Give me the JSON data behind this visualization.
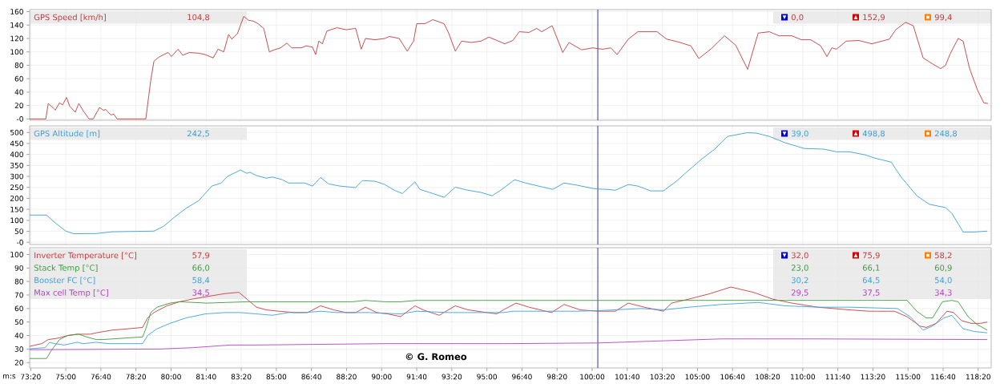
{
  "chart_data": [
    {
      "type": "line",
      "series": [
        {
          "name": "GPS Speed [km/h]",
          "color": "#c23b3b",
          "x": [
            4397,
            4443,
            4450,
            4463,
            4470,
            4482,
            4491,
            4502,
            4511,
            4527,
            4537,
            4550,
            4566,
            4578,
            4596,
            4607,
            4614,
            4628,
            4637,
            4646,
            4728,
            4742,
            4751,
            4765,
            4779,
            4792,
            4801,
            4820,
            4833,
            4852,
            4879,
            4897,
            4920,
            4934,
            4950,
            4964,
            4973,
            4989,
            5007,
            5021,
            5034,
            5048,
            5064,
            5080,
            5094,
            5112,
            5130,
            5144,
            5171,
            5185,
            5203,
            5212,
            5221,
            5231,
            5244,
            5272,
            5299,
            5326,
            5342,
            5354,
            5381,
            5409,
            5422,
            5450,
            5473,
            5491,
            5500,
            5523,
            5546,
            5578,
            5591,
            5610,
            5628,
            5655,
            5683,
            5706,
            5751,
            5774,
            5792,
            5820,
            5842,
            5856,
            5886,
            5916,
            5934,
            5970,
            6002,
            6016,
            6030,
            6053,
            6071,
            6103,
            6130,
            6185,
            6212,
            6244,
            6281,
            6304,
            6340,
            6377,
            6409,
            6443,
            6473,
            6505,
            6532,
            6569,
            6596,
            6623,
            6651,
            6669,
            6683,
            6696,
            6724,
            6760,
            6797,
            6847,
            6865,
            6893,
            6915,
            6943,
            6970,
            6993,
            7007,
            7021,
            7043,
            7057,
            7075,
            7098,
            7116,
            7128
          ],
          "values": [
            0,
            0,
            23,
            17,
            13,
            24,
            21,
            32,
            19,
            10,
            23,
            12,
            0,
            0,
            17,
            13,
            14,
            6,
            7,
            0,
            0,
            57,
            86,
            92,
            96,
            99,
            93,
            104,
            95,
            99,
            98,
            96,
            91,
            104,
            100,
            126,
            119,
            127,
            152.9,
            147,
            146,
            142,
            135,
            100,
            103,
            106,
            113,
            106,
            106,
            109,
            107,
            96,
            116,
            112,
            131,
            136,
            133,
            135,
            104,
            120,
            118,
            120,
            123,
            120,
            101,
            116,
            142,
            142,
            148,
            142,
            128,
            101,
            116,
            114,
            116,
            122,
            112,
            117,
            130,
            129,
            135,
            130,
            139,
            99,
            114,
            103,
            106,
            104.8,
            104,
            106,
            96,
            119,
            130,
            130,
            119,
            115,
            109,
            90,
            105,
            124,
            110,
            74,
            128,
            130,
            124,
            124,
            118,
            118,
            109,
            93,
            106,
            104,
            116,
            117,
            112,
            119,
            133,
            144,
            139,
            91,
            82,
            75,
            80,
            98,
            120,
            116,
            76,
            43,
            24,
            23
          ]
        }
      ],
      "xlim": [
        4397,
        7137
      ],
      "xticks": [
        4400,
        4500,
        4600,
        4700,
        4800,
        4900,
        5000,
        5100,
        5200,
        5300,
        5400,
        5500,
        5600,
        5700,
        5800,
        5900,
        6000,
        6100,
        6200,
        6300,
        6400,
        6500,
        6600,
        6700,
        6800,
        6900,
        7000,
        7100
      ],
      "ylim": [
        -2,
        163
      ],
      "yticks": [
        {
          "value": 0,
          "label": "-0"
        },
        20,
        40,
        60,
        80,
        100,
        120,
        140,
        160
      ],
      "grid": true,
      "legend": "top left",
      "tick_labels": "y",
      "ref_lines": [
        {
          "axis": "x",
          "value": 6016,
          "color": "#1f1f8f"
        }
      ],
      "annotations": [
        "104,8",
        "0,0",
        "152,9",
        "99,4"
      ]
    },
    {
      "type": "line",
      "series": [
        {
          "name": "GPS Altitude [m]",
          "color": "#3aa0d0",
          "x": [
            4397,
            4445,
            4468,
            4500,
            4523,
            4587,
            4632,
            4751,
            4779,
            4806,
            4842,
            4879,
            4916,
            4943,
            4961,
            4989,
            4998,
            5016,
            5025,
            5043,
            5071,
            5089,
            5117,
            5135,
            5180,
            5203,
            5226,
            5249,
            5281,
            5326,
            5345,
            5381,
            5409,
            5436,
            5459,
            5495,
            5509,
            5546,
            5578,
            5610,
            5646,
            5683,
            5715,
            5742,
            5779,
            5810,
            5847,
            5888,
            5920,
            5957,
            6002,
            6016,
            6043,
            6066,
            6103,
            6130,
            6167,
            6203,
            6240,
            6276,
            6313,
            6349,
            6386,
            6413,
            6441,
            6468,
            6505,
            6550,
            6605,
            6660,
            6696,
            6733,
            6778,
            6806,
            6852,
            6879,
            6925,
            6961,
            7007,
            7025,
            7057,
            7089,
            7126
          ],
          "values": [
            124,
            124,
            91,
            51,
            39,
            40,
            48,
            51,
            73,
            110,
            154,
            190,
            256,
            270,
            300,
            322,
            329,
            314,
            319,
            304,
            292,
            297,
            285,
            270,
            270,
            256,
            295,
            266,
            256,
            249,
            281,
            278,
            263,
            237,
            222,
            275,
            241,
            222,
            205,
            251,
            237,
            227,
            212,
            240,
            285,
            270,
            256,
            241,
            270,
            260,
            245,
            242.5,
            241,
            237,
            263,
            256,
            234,
            234,
            278,
            329,
            380,
            424,
            482,
            490,
            498.8,
            497,
            482,
            453,
            427,
            424,
            412,
            412,
            398,
            383,
            365,
            300,
            212,
            173,
            158,
            132,
            47,
            47,
            51
          ]
        }
      ],
      "xlim": [
        4397,
        7137
      ],
      "xticks": [
        4400,
        4500,
        4600,
        4700,
        4800,
        4900,
        5000,
        5100,
        5200,
        5300,
        5400,
        5500,
        5600,
        5700,
        5800,
        5900,
        6000,
        6100,
        6200,
        6300,
        6400,
        6500,
        6600,
        6700,
        6800,
        6900,
        7000,
        7100
      ],
      "ylim": [
        -10,
        530
      ],
      "yticks": [
        {
          "value": 0,
          "label": "-0"
        },
        50,
        100,
        150,
        200,
        250,
        300,
        350,
        400,
        450,
        500
      ],
      "grid": true,
      "legend": "top left",
      "tick_labels": "y",
      "ref_lines": [
        {
          "axis": "x",
          "value": 6016,
          "color": "#1f1f8f"
        }
      ],
      "annotations": [
        "242,5",
        "39,0",
        "498,8",
        "248,8"
      ]
    },
    {
      "type": "line",
      "xlabel": "m:s",
      "series": [
        {
          "name": "Inverter Temperature [°C]",
          "color": "#c83c3c",
          "x": [
            4397,
            4431,
            4450,
            4477,
            4505,
            4532,
            4569,
            4587,
            4632,
            4678,
            4719,
            4733,
            4751,
            4788,
            4824,
            4861,
            4906,
            4952,
            4993,
            5007,
            5025,
            5043,
            5071,
            5107,
            5153,
            5189,
            5226,
            5263,
            5299,
            5326,
            5354,
            5386,
            5418,
            5454,
            5495,
            5518,
            5564,
            5610,
            5646,
            5701,
            5728,
            5747,
            5783,
            5820,
            5884,
            5920,
            5966,
            6016,
            6066,
            6103,
            6148,
            6203,
            6226,
            6276,
            6336,
            6395,
            6459,
            6514,
            6569,
            6642,
            6733,
            6788,
            6861,
            6897,
            6934,
            6952,
            6980,
            7011,
            7030,
            7053,
            7080,
            7107,
            7126
          ],
          "values": [
            32,
            34,
            37,
            38,
            40,
            41,
            41,
            42,
            44,
            45,
            46,
            53,
            57,
            62,
            65,
            67,
            69,
            71,
            72,
            69,
            65,
            61,
            59,
            58,
            57,
            57,
            62,
            59,
            57,
            57,
            61,
            57,
            56,
            54,
            62,
            59,
            55,
            62,
            59,
            57,
            56,
            59,
            64,
            61,
            57,
            63,
            59,
            58,
            58,
            64,
            61,
            58,
            64,
            67,
            71,
            75.9,
            72,
            67,
            64,
            61,
            59,
            58,
            58,
            54,
            47,
            46,
            49,
            58,
            57,
            51,
            49,
            49,
            50
          ]
        },
        {
          "name": "Stack Temp [°C]",
          "color": "#3c9a3c",
          "x": [
            4397,
            4445,
            4459,
            4482,
            4505,
            4537,
            4559,
            4587,
            4605,
            4719,
            4728,
            4742,
            4760,
            4797,
            4824,
            4902,
            5016,
            5317,
            5354,
            5409,
            5454,
            5500,
            6016,
            6897,
            6925,
            6952,
            6970,
            6998,
            7025,
            7043,
            7071,
            7098,
            7126
          ],
          "values": [
            23,
            23,
            29,
            37,
            40,
            41,
            39,
            37,
            37,
            39,
            45,
            57,
            61,
            64,
            65,
            64,
            65,
            65,
            66,
            65,
            65,
            66,
            66,
            66.1,
            58,
            53,
            53,
            65,
            66,
            65,
            54,
            48,
            44
          ]
        },
        {
          "name": "Booster FC [°C]",
          "color": "#3ba3d9",
          "x": [
            4397,
            4441,
            4454,
            4468,
            4495,
            4532,
            4550,
            4587,
            4623,
            4719,
            4733,
            4760,
            4797,
            4842,
            4897,
            4952,
            4998,
            5043,
            5089,
            5135,
            5180,
            5226,
            5272,
            5363,
            5454,
            5500,
            5591,
            5683,
            5747,
            5774,
            5865,
            5957,
            6016,
            6139,
            6203,
            6276,
            6368,
            6473,
            6550,
            6642,
            6733,
            6870,
            6906,
            6943,
            6970,
            7002,
            7025,
            7057,
            7089,
            7126
          ],
          "values": [
            30.2,
            31,
            35,
            34,
            33,
            35,
            34,
            35,
            34,
            34,
            40,
            45,
            49,
            53,
            56,
            57,
            57,
            56,
            55,
            57,
            57,
            58,
            57,
            57,
            56,
            58,
            57,
            57,
            57,
            58,
            58,
            58,
            58.4,
            60,
            59,
            61,
            63,
            64.5,
            62,
            61,
            61,
            60,
            54,
            44,
            47,
            53,
            55,
            45,
            43,
            42
          ]
        },
        {
          "name": "Max cell Temp [°C]",
          "color": "#b83fc6",
          "x": [
            4397,
            4769,
            4861,
            4970,
            5043,
            5409,
            5747,
            6016,
            6368,
            6642,
            7126
          ],
          "values": [
            29.5,
            30,
            31,
            33,
            33,
            34,
            34,
            34.5,
            37.5,
            37.5,
            37
          ]
        }
      ],
      "xlim": [
        4397,
        7137
      ],
      "xticks": [
        {
          "value": 4400,
          "label": "73:20"
        },
        {
          "value": 4500,
          "label": "75:00"
        },
        {
          "value": 4600,
          "label": "76:40"
        },
        {
          "value": 4700,
          "label": "78:20"
        },
        {
          "value": 4800,
          "label": "80:00"
        },
        {
          "value": 4900,
          "label": "81:40"
        },
        {
          "value": 5000,
          "label": "83:20"
        },
        {
          "value": 5100,
          "label": "85:00"
        },
        {
          "value": 5200,
          "label": "86:40"
        },
        {
          "value": 5300,
          "label": "88:20"
        },
        {
          "value": 5400,
          "label": "90:00"
        },
        {
          "value": 5500,
          "label": "91:40"
        },
        {
          "value": 5600,
          "label": "93:20"
        },
        {
          "value": 5700,
          "label": "95:00"
        },
        {
          "value": 5800,
          "label": "96:40"
        },
        {
          "value": 5900,
          "label": "98:20"
        },
        {
          "value": 6000,
          "label": "100:00"
        },
        {
          "value": 6100,
          "label": "101:40"
        },
        {
          "value": 6200,
          "label": "103:20"
        },
        {
          "value": 6300,
          "label": "105:00"
        },
        {
          "value": 6400,
          "label": "106:40"
        },
        {
          "value": 6500,
          "label": "108:20"
        },
        {
          "value": 6600,
          "label": "110:00"
        },
        {
          "value": 6700,
          "label": "111:40"
        },
        {
          "value": 6800,
          "label": "113:20"
        },
        {
          "value": 6900,
          "label": "115:00"
        },
        {
          "value": 7000,
          "label": "116:40"
        },
        {
          "value": 7100,
          "label": "118:20"
        }
      ],
      "ylim": [
        16,
        105
      ],
      "yticks": [
        20,
        30,
        40,
        50,
        60,
        70,
        80,
        90,
        100
      ],
      "grid": true,
      "legend": "top left",
      "ref_lines": [
        {
          "axis": "x",
          "value": 6016,
          "color": "#1f1f8f"
        }
      ],
      "annotations": [
        "57,9",
        "32,0",
        "75,9",
        "58,2",
        "66,0",
        "23,0",
        "66,1",
        "60,9",
        "58,4",
        "30,2",
        "64,5",
        "54,0",
        "34,5",
        "29,5",
        "37,5",
        "34,3",
        "© G. Romeo"
      ]
    }
  ]
}
